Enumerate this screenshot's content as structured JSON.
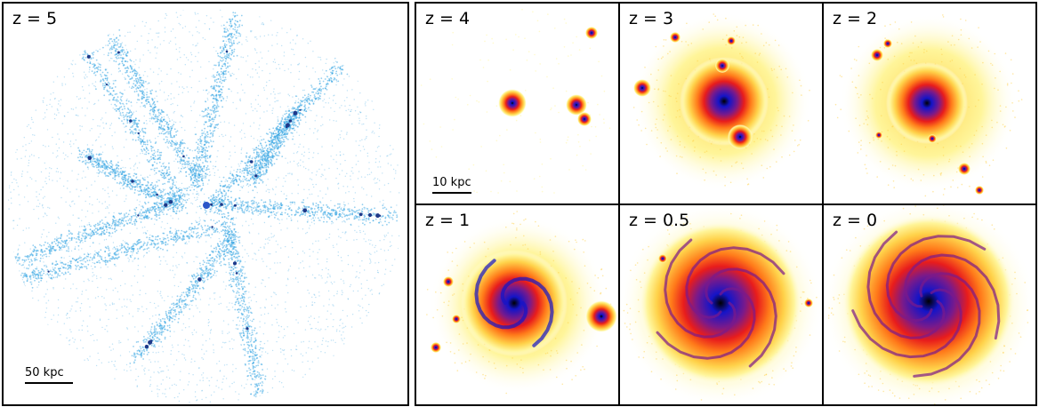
{
  "left_panel": {
    "label": "z = 5",
    "scale_label": "50 kpc",
    "colors": {
      "filament": "#3ba7e3",
      "halo": "#1e3a8a"
    }
  },
  "right_panels": [
    {
      "label": "z = 4",
      "scale_label": "10 kpc"
    },
    {
      "label": "z = 3"
    },
    {
      "label": "z = 2"
    },
    {
      "label": "z = 1"
    },
    {
      "label": "z = 0.5"
    },
    {
      "label": "z = 0"
    }
  ],
  "colormap": [
    "#ffffff",
    "#fff59a",
    "#ffd24a",
    "#ff7a1a",
    "#e81c1c",
    "#7a1a8a",
    "#1414c8",
    "#000000"
  ]
}
